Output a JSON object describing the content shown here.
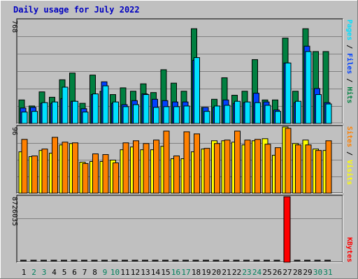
{
  "title": "Daily usage for July 2022",
  "colors": {
    "background": "#c0c0c0",
    "hits": "#008040",
    "files": "#0040ff",
    "pages": "#00e0ff",
    "visits": "#ffff00",
    "sites": "#ff8000",
    "kbytes": "#ff0000",
    "title": "#0000c0"
  },
  "chart_data": [
    {
      "type": "bar",
      "panel": "top",
      "ymax_label": "768",
      "ymax": 768,
      "legend": [
        "Pages",
        "Files",
        "Hits"
      ],
      "legend_colors": [
        "#00e0ff",
        "#0040ff",
        "#008040"
      ],
      "categories": [
        1,
        2,
        3,
        4,
        5,
        6,
        7,
        8,
        9,
        10,
        11,
        12,
        13,
        14,
        15,
        16,
        17,
        18,
        19,
        20,
        21,
        22,
        23,
        24,
        25,
        26,
        27,
        28,
        29,
        30,
        31
      ],
      "series": [
        {
          "name": "Hits",
          "values": [
            175,
            130,
            235,
            195,
            325,
            375,
            150,
            360,
            240,
            215,
            265,
            240,
            295,
            230,
            400,
            300,
            240,
            705,
            120,
            180,
            340,
            210,
            240,
            475,
            175,
            175,
            635,
            240,
            705,
            535,
            535
          ]
        },
        {
          "name": "Files",
          "values": [
            115,
            120,
            150,
            150,
            185,
            165,
            110,
            215,
            310,
            150,
            140,
            170,
            220,
            180,
            170,
            160,
            160,
            470,
            120,
            120,
            175,
            150,
            155,
            225,
            160,
            100,
            450,
            155,
            575,
            260,
            155
          ]
        },
        {
          "name": "Pages",
          "values": [
            85,
            90,
            155,
            160,
            270,
            165,
            85,
            220,
            280,
            160,
            125,
            140,
            215,
            120,
            125,
            125,
            130,
            490,
            90,
            130,
            135,
            165,
            160,
            155,
            135,
            90,
            450,
            165,
            535,
            215,
            145
          ]
        }
      ]
    },
    {
      "type": "bar",
      "panel": "middle",
      "ymax_label": "96",
      "ymax": 96,
      "legend": [
        "Sites",
        "Visits"
      ],
      "legend_colors": [
        "#ff8000",
        "#ffff00"
      ],
      "categories": [
        1,
        2,
        3,
        4,
        5,
        6,
        7,
        8,
        9,
        10,
        11,
        12,
        13,
        14,
        15,
        16,
        17,
        18,
        19,
        20,
        21,
        22,
        23,
        24,
        25,
        26,
        27,
        28,
        29,
        30,
        31
      ],
      "series": [
        {
          "name": "Visits",
          "values": [
            60,
            53,
            62,
            58,
            70,
            72,
            45,
            46,
            46,
            48,
            63,
            67,
            63,
            63,
            68,
            50,
            50,
            60,
            64,
            76,
            76,
            74,
            70,
            76,
            79,
            55,
            96,
            72,
            77,
            64,
            62
          ]
        },
        {
          "name": "Sites",
          "values": [
            78,
            54,
            64,
            81,
            74,
            73,
            43,
            57,
            56,
            44,
            73,
            76,
            72,
            77,
            90,
            54,
            89,
            86,
            65,
            72,
            77,
            90,
            77,
            78,
            71,
            66,
            94,
            70,
            70,
            62,
            76
          ]
        }
      ]
    },
    {
      "type": "bar",
      "panel": "bottom",
      "ymax_label": "8726035",
      "ymax": 8726035,
      "legend": [
        "KBytes"
      ],
      "legend_colors": [
        "#ff0000"
      ],
      "categories": [
        1,
        2,
        3,
        4,
        5,
        6,
        7,
        8,
        9,
        10,
        11,
        12,
        13,
        14,
        15,
        16,
        17,
        18,
        19,
        20,
        21,
        22,
        23,
        24,
        25,
        26,
        27,
        28,
        29,
        30,
        31
      ],
      "series": [
        {
          "name": "KBytes",
          "values": [
            0,
            0,
            0,
            0,
            0,
            0,
            0,
            0,
            0,
            0,
            0,
            0,
            0,
            0,
            0,
            0,
            0,
            0,
            0,
            0,
            0,
            0,
            0,
            0,
            0,
            0,
            8726035,
            0,
            0,
            0,
            0
          ]
        }
      ]
    }
  ],
  "x_labels": [
    "1",
    "2",
    "3",
    "4",
    "5",
    "6",
    "7",
    "8",
    "9",
    "10",
    "11",
    "12",
    "13",
    "14",
    "15",
    "16",
    "17",
    "18",
    "19",
    "20",
    "21",
    "22",
    "23",
    "24",
    "25",
    "26",
    "27",
    "28",
    "29",
    "30",
    "31"
  ],
  "weekend_days": [
    2,
    3,
    9,
    10,
    16,
    17,
    23,
    24,
    30,
    31
  ]
}
